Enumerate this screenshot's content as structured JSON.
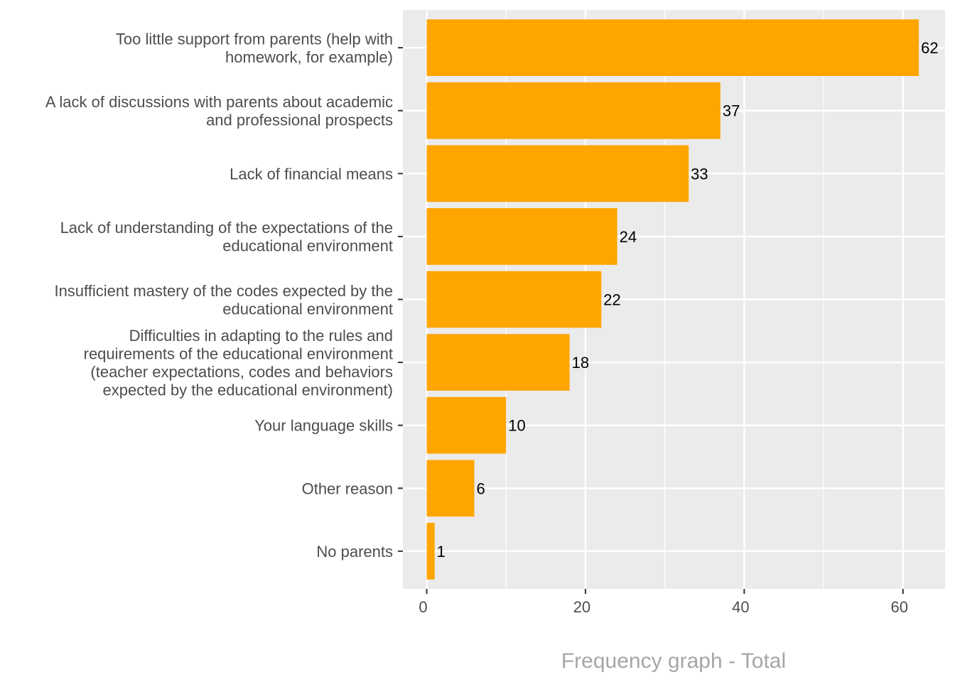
{
  "chart_data": {
    "type": "bar",
    "orientation": "horizontal",
    "categories": [
      [
        "Too little support from parents (help with",
        "homework, for example)"
      ],
      [
        "A lack of discussions with parents about academic",
        "and professional prospects"
      ],
      [
        "Lack of financial means"
      ],
      [
        "Lack of understanding of the expectations of the",
        "educational environment"
      ],
      [
        "Insufficient mastery of the codes expected by the",
        "educational environment"
      ],
      [
        "Difficulties in adapting to the rules and",
        "requirements of the educational environment",
        "(teacher expectations, codes and behaviors",
        "expected by the educational environment)"
      ],
      [
        "Your language skills"
      ],
      [
        "Other reason"
      ],
      [
        "No parents"
      ]
    ],
    "values": [
      62,
      37,
      33,
      24,
      22,
      18,
      10,
      6,
      1
    ],
    "data_labels": [
      "62",
      "37",
      "33",
      "24",
      "22",
      "18",
      "10",
      "6",
      "1"
    ],
    "title": "",
    "xlabel": "Frequency graph - Total",
    "ylabel": "",
    "xlim": [
      -3,
      65.3
    ],
    "xticks": [
      0,
      20,
      40,
      60
    ],
    "xtick_labels": [
      "0",
      "20",
      "40",
      "60"
    ],
    "minor_xticks": [
      10,
      30,
      50
    ],
    "grid": true,
    "legend": "none",
    "colors": {
      "bar": "#FFA500",
      "panel_background": "#EBEBEB",
      "grid": "#FFFFFF",
      "axis_text": "#4D4D4D",
      "data_label": "#000000",
      "axis_title": "#A6A6A6"
    }
  }
}
